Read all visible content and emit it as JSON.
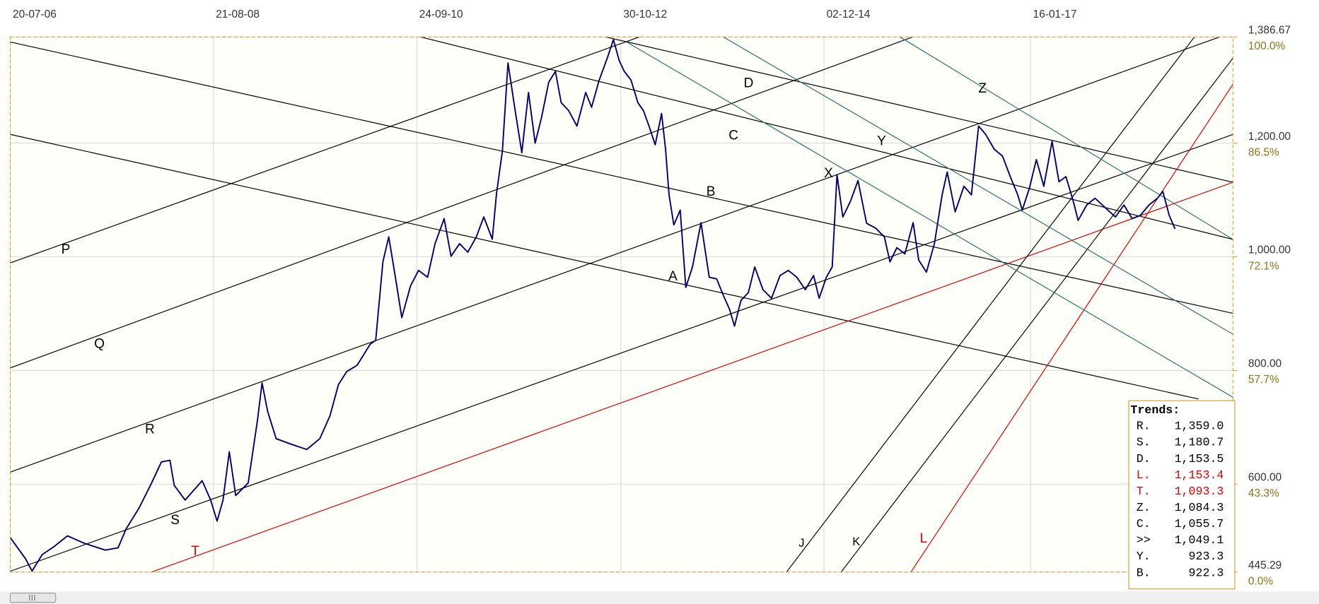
{
  "chart_data": {
    "type": "line",
    "color": "#000066",
    "x": [
      "2006-07-20",
      "2006-09-15",
      "2006-10-10",
      "2006-11-17",
      "2007-01-03",
      "2007-02-20",
      "2007-04-24",
      "2007-07-12",
      "2007-08-29",
      "2007-09-28",
      "2007-11-16",
      "2008-01-02",
      "2008-02-08",
      "2008-03-11",
      "2008-03-27",
      "2008-05-07",
      "2008-07-10",
      "2008-08-11",
      "2008-09-04",
      "2008-09-26",
      "2008-10-20",
      "2008-11-13",
      "2008-12-30",
      "2009-02-03",
      "2009-02-20",
      "2009-03-13",
      "2009-04-14",
      "2009-06-05",
      "2009-08-07",
      "2009-09-25",
      "2009-11-02",
      "2009-12-04",
      "2010-01-04",
      "2010-02-12",
      "2010-04-02",
      "2010-04-23",
      "2010-05-20",
      "2010-06-11",
      "2010-07-06",
      "2010-07-30",
      "2010-09-01",
      "2010-10-01",
      "2010-11-04",
      "2010-12-02",
      "2011-01-05",
      "2011-01-31",
      "2011-03-04",
      "2011-04-04",
      "2011-05-06",
      "2011-06-03",
      "2011-07-05",
      "2011-07-21",
      "2011-08-12",
      "2011-09-02",
      "2011-09-28",
      "2011-10-24",
      "2011-11-18",
      "2011-12-13",
      "2012-01-06",
      "2012-02-02",
      "2012-02-27",
      "2012-03-20",
      "2012-04-17",
      "2012-05-18",
      "2012-06-20",
      "2012-07-12",
      "2012-08-09",
      "2012-09-10",
      "2012-10-02",
      "2012-10-24",
      "2012-11-12",
      "2012-12-07",
      "2013-01-02",
      "2013-01-23",
      "2013-02-15",
      "2013-03-08",
      "2013-04-01",
      "2013-04-16",
      "2013-04-29",
      "2013-05-17",
      "2013-06-10",
      "2013-07-01",
      "2013-07-26",
      "2013-08-27",
      "2013-09-27",
      "2013-10-25",
      "2013-11-20",
      "2013-12-12",
      "2013-12-31",
      "2014-01-24",
      "2014-02-21",
      "2014-03-17",
      "2014-04-17",
      "2014-05-19",
      "2014-06-20",
      "2014-07-21",
      "2014-08-22",
      "2014-09-23",
      "2014-10-24",
      "2014-11-14",
      "2014-12-11",
      "2015-01-02",
      "2015-01-20",
      "2015-02-11",
      "2015-03-11",
      "2015-04-09",
      "2015-05-11",
      "2015-06-15",
      "2015-07-17",
      "2015-08-07",
      "2015-09-02",
      "2015-10-02",
      "2015-11-02",
      "2015-11-23",
      "2015-12-22",
      "2016-01-21",
      "2016-02-19",
      "2016-03-09",
      "2016-04-08",
      "2016-05-11",
      "2016-06-08",
      "2016-07-05",
      "2016-08-01",
      "2016-09-02",
      "2016-10-03",
      "2016-11-01",
      "2016-11-29",
      "2016-12-16",
      "2017-01-12",
      "2017-02-07",
      "2017-03-07",
      "2017-04-07",
      "2017-05-03",
      "2017-05-29",
      "2017-06-26",
      "2017-07-14",
      "2017-08-15",
      "2017-09-15",
      "2017-10-27",
      "2017-12-01",
      "2018-01-02",
      "2018-02-02",
      "2018-03-05",
      "2018-04-06",
      "2018-05-08",
      "2018-05-28",
      "2018-06-21",
      "2018-07-13"
    ],
    "values": [
      506,
      469,
      447,
      476,
      491,
      509,
      496,
      484,
      488,
      521,
      558,
      602,
      639,
      642,
      598,
      572,
      606,
      572,
      535,
      571,
      657,
      580,
      602,
      713,
      778,
      728,
      680,
      671,
      661,
      680,
      720,
      775,
      798,
      809,
      846,
      853,
      991,
      1035,
      964,
      893,
      949,
      976,
      964,
      1023,
      1067,
      1001,
      1023,
      1008,
      1035,
      1070,
      1031,
      1112,
      1186,
      1341,
      1260,
      1183,
      1289,
      1200,
      1245,
      1307,
      1326,
      1271,
      1257,
      1230,
      1289,
      1263,
      1310,
      1351,
      1382,
      1345,
      1326,
      1311,
      1271,
      1257,
      1227,
      1197,
      1252,
      1189,
      1109,
      1056,
      1082,
      946,
      982,
      1060,
      964,
      961,
      931,
      908,
      878,
      923,
      937,
      982,
      942,
      927,
      967,
      976,
      964,
      942,
      967,
      927,
      964,
      982,
      1144,
      1070,
      1097,
      1134,
      1059,
      1050,
      1035,
      991,
      1016,
      1005,
      1060,
      994,
      973,
      1023,
      1109,
      1149,
      1079,
      1124,
      1109,
      1230,
      1215,
      1189,
      1177,
      1141,
      1109,
      1082,
      1121,
      1171,
      1124,
      1203,
      1132,
      1141,
      1097,
      1064,
      1091,
      1103,
      1085,
      1070,
      1091,
      1067,
      1073,
      1091,
      1103,
      1115,
      1073,
      1049
    ],
    "xlim": [
      "2006-07-20",
      "2019-02-16"
    ],
    "ylim": [
      445.29,
      1386.67
    ],
    "xticks": [
      {
        "value": "2006-07-20",
        "label": "20-07-06"
      },
      {
        "value": "2008-08-21",
        "label": "21-08-08"
      },
      {
        "value": "2010-09-24",
        "label": "24-09-10"
      },
      {
        "value": "2012-10-30",
        "label": "30-10-12"
      },
      {
        "value": "2014-12-02",
        "label": "02-12-14"
      },
      {
        "value": "2017-01-16",
        "label": "16-01-17"
      }
    ],
    "yticks": [
      {
        "value": 1386.67,
        "label": "1,386.67",
        "pct": "100.0%"
      },
      {
        "value": 1200,
        "label": "1,200.00",
        "pct": "86.5%"
      },
      {
        "value": 1000,
        "label": "1,000.00",
        "pct": "72.1%"
      },
      {
        "value": 800,
        "label": "800.00",
        "pct": "57.7%"
      },
      {
        "value": 600,
        "label": "600.00",
        "pct": "43.3%"
      },
      {
        "value": 445.29,
        "label": "445.29",
        "pct": "0.0%"
      }
    ],
    "grid": true,
    "annotations": [
      {
        "text": "P",
        "color": "#000000"
      },
      {
        "text": "Q",
        "color": "#000000"
      },
      {
        "text": "R",
        "color": "#000000"
      },
      {
        "text": "S",
        "color": "#000000"
      },
      {
        "text": "T",
        "color": "#e00000"
      },
      {
        "text": "A",
        "color": "#000000"
      },
      {
        "text": "B",
        "color": "#000000"
      },
      {
        "text": "C",
        "color": "#000000"
      },
      {
        "text": "D",
        "color": "#000000"
      },
      {
        "text": "X",
        "color": "#000000"
      },
      {
        "text": "Y",
        "color": "#000000"
      },
      {
        "text": "Z",
        "color": "#000000"
      },
      {
        "text": "J",
        "color": "#000000"
      },
      {
        "text": "K",
        "color": "#000000"
      },
      {
        "text": "L",
        "color": "#e00000"
      }
    ],
    "legend": {
      "title": "Trends:",
      "entries": [
        {
          "name": "R.",
          "value": "1,359.0",
          "color": "#000000"
        },
        {
          "name": "S.",
          "value": "1,180.7",
          "color": "#000000"
        },
        {
          "name": "D.",
          "value": "1,153.5",
          "color": "#000000"
        },
        {
          "name": "L.",
          "value": "1,153.4",
          "color": "#e00000"
        },
        {
          "name": "T.",
          "value": "1,093.3",
          "color": "#e00000"
        },
        {
          "name": "Z.",
          "value": "1,084.3",
          "color": "#000000"
        },
        {
          "name": "C.",
          "value": "1,055.7",
          "color": "#000000"
        },
        {
          "name": ">>",
          "value": "1,049.1",
          "color": "#000000"
        },
        {
          "name": "Y.",
          "value": "923.3",
          "color": "#000000"
        },
        {
          "name": "B.",
          "value": "922.3",
          "color": "#000000"
        }
      ]
    }
  }
}
